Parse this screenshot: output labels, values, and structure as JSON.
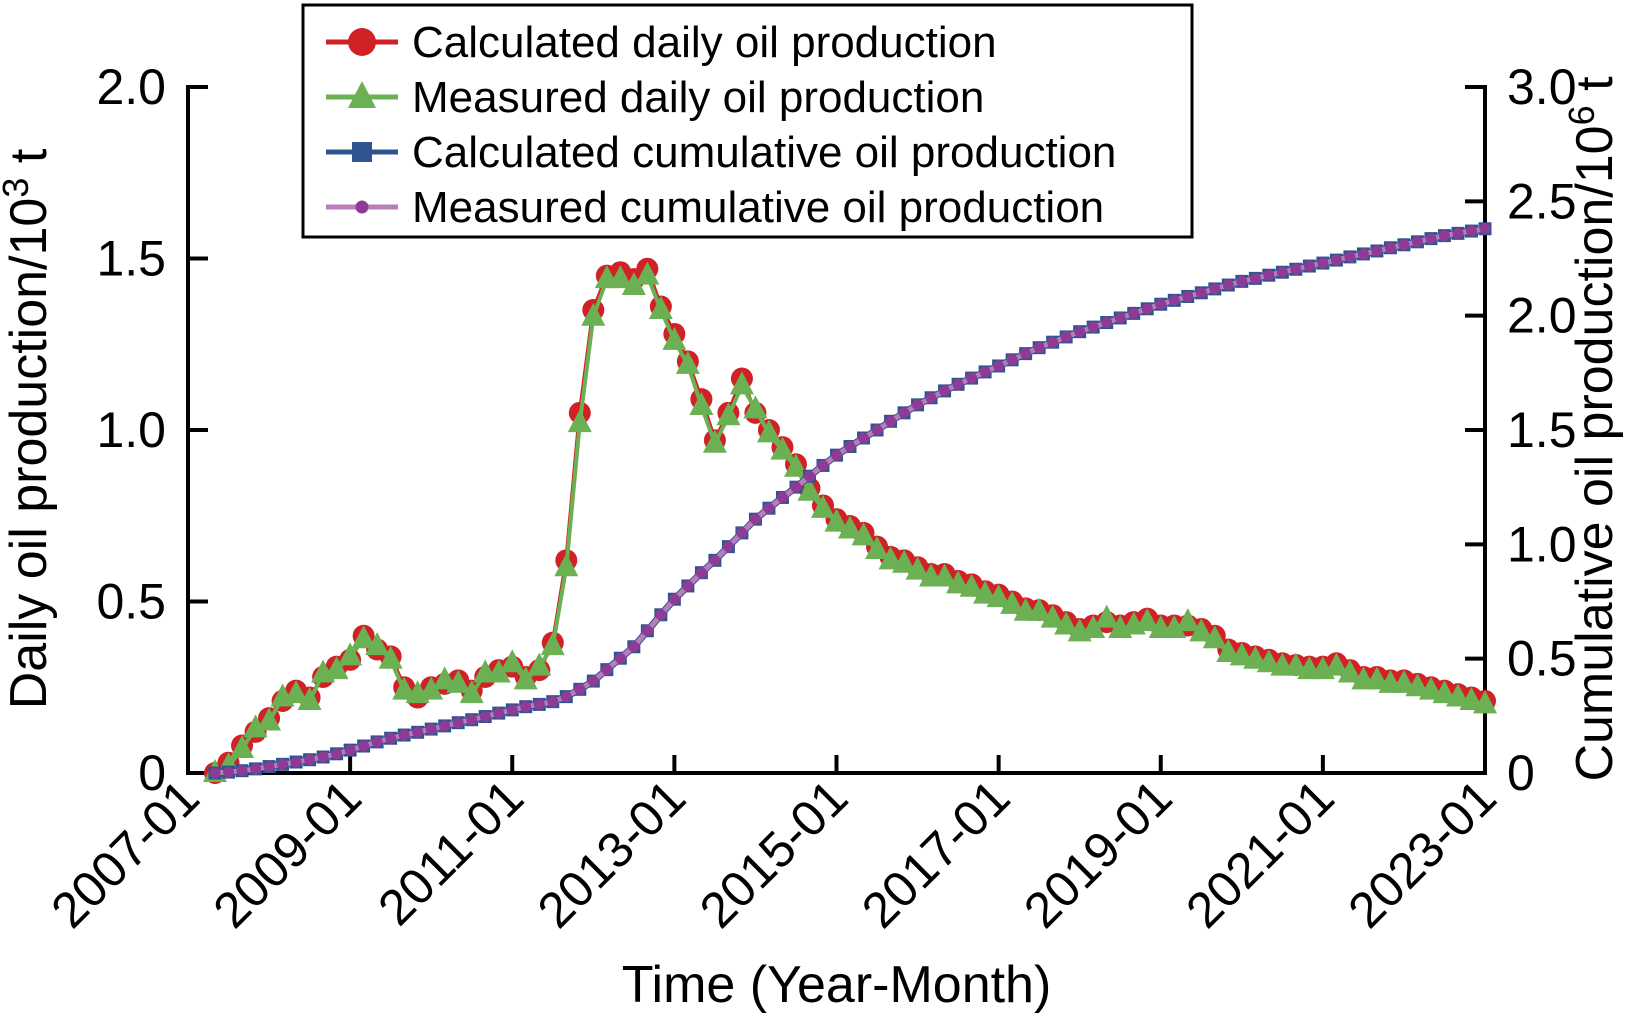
{
  "figure": {
    "background": "#ffffff",
    "axis_color": "#000000",
    "text_color": "#000000"
  },
  "chart_data": {
    "type": "line",
    "title": "",
    "xlabel": "Time (Year-Month)",
    "x_tick_labels": [
      "2007-01",
      "2009-01",
      "2011-01",
      "2013-01",
      "2015-01",
      "2017-01",
      "2019-01",
      "2021-01",
      "2023-01"
    ],
    "x_tick_years": [
      2007,
      2009,
      2011,
      2013,
      2015,
      2017,
      2019,
      2021,
      2023
    ],
    "x_range_years": [
      2007.0,
      2023.0
    ],
    "left_axis": {
      "title_prefix": "Daily oil production/10",
      "title_sup": "3",
      "title_suffix": " t",
      "range": [
        0,
        2.0
      ],
      "tick_values": [
        0,
        0.5,
        1.0,
        1.5,
        2.0
      ],
      "tick_labels": [
        "0",
        "0.5",
        "1.0",
        "1.5",
        "2.0"
      ]
    },
    "right_axis": {
      "title_prefix": "Cumulative oil production/10",
      "title_sup": "6",
      "title_suffix": " t",
      "range": [
        0,
        3.0
      ],
      "tick_values": [
        0,
        0.5,
        1.0,
        1.5,
        2.0,
        2.5,
        3.0
      ],
      "tick_labels": [
        "0",
        "0.5",
        "1.0",
        "1.5",
        "2.0",
        "2.5",
        "3.0"
      ]
    },
    "sampling": {
      "start_month": "2007-05",
      "end_month": "2023-01",
      "interval_months": 2,
      "start_year_decimal": 2007.3333,
      "step_years": 0.1666667
    },
    "legend": {
      "position": "top-left",
      "border_color": "#000000",
      "background": "#ffffff"
    },
    "series": [
      {
        "name": "Calculated daily oil production",
        "axis": "left",
        "marker": "circle",
        "color": "#d22027",
        "line_color": "#d22027",
        "line_width": 4,
        "marker_half_size": 11,
        "legend_marker_half_size": 14,
        "values": [
          0.0,
          0.03,
          0.08,
          0.12,
          0.16,
          0.21,
          0.24,
          0.22,
          0.28,
          0.31,
          0.33,
          0.4,
          0.36,
          0.34,
          0.25,
          0.22,
          0.25,
          0.26,
          0.27,
          0.24,
          0.28,
          0.3,
          0.31,
          0.28,
          0.3,
          0.38,
          0.62,
          1.05,
          1.35,
          1.45,
          1.46,
          1.44,
          1.47,
          1.36,
          1.28,
          1.2,
          1.09,
          0.97,
          1.05,
          1.15,
          1.05,
          1.0,
          0.95,
          0.9,
          0.83,
          0.78,
          0.74,
          0.72,
          0.7,
          0.66,
          0.63,
          0.62,
          0.6,
          0.58,
          0.58,
          0.56,
          0.55,
          0.53,
          0.52,
          0.5,
          0.48,
          0.475,
          0.46,
          0.44,
          0.42,
          0.43,
          0.44,
          0.43,
          0.44,
          0.45,
          0.43,
          0.43,
          0.43,
          0.42,
          0.4,
          0.36,
          0.35,
          0.34,
          0.33,
          0.32,
          0.315,
          0.31,
          0.31,
          0.32,
          0.3,
          0.28,
          0.28,
          0.27,
          0.27,
          0.26,
          0.25,
          0.24,
          0.23,
          0.22,
          0.21
        ]
      },
      {
        "name": "Measured daily oil production",
        "axis": "left",
        "marker": "triangle",
        "color": "#6bb052",
        "line_color": "#6bb052",
        "line_width": 4,
        "marker_half_size": 12,
        "legend_marker_half_size": 14,
        "values": [
          0.0,
          0.02,
          0.07,
          0.13,
          0.15,
          0.22,
          0.23,
          0.21,
          0.29,
          0.3,
          0.34,
          0.39,
          0.37,
          0.33,
          0.24,
          0.23,
          0.24,
          0.27,
          0.26,
          0.23,
          0.29,
          0.29,
          0.32,
          0.27,
          0.31,
          0.37,
          0.6,
          1.02,
          1.33,
          1.44,
          1.44,
          1.42,
          1.45,
          1.35,
          1.26,
          1.19,
          1.07,
          0.96,
          1.04,
          1.13,
          1.06,
          0.99,
          0.94,
          0.89,
          0.82,
          0.77,
          0.73,
          0.71,
          0.69,
          0.65,
          0.62,
          0.61,
          0.59,
          0.57,
          0.57,
          0.55,
          0.54,
          0.52,
          0.51,
          0.49,
          0.47,
          0.47,
          0.45,
          0.43,
          0.41,
          0.42,
          0.45,
          0.42,
          0.43,
          0.44,
          0.42,
          0.42,
          0.44,
          0.41,
          0.39,
          0.35,
          0.34,
          0.33,
          0.32,
          0.31,
          0.31,
          0.3,
          0.3,
          0.31,
          0.29,
          0.27,
          0.27,
          0.26,
          0.26,
          0.25,
          0.24,
          0.23,
          0.22,
          0.21,
          0.2
        ]
      },
      {
        "name": "Calculated cumulative oil production",
        "axis": "right",
        "marker": "square",
        "color": "#2e5590",
        "line_color": "#2e5590",
        "line_width": 7,
        "marker_half_size": 6.5,
        "legend_marker_half_size": 10,
        "values": [
          0.0,
          0.004,
          0.01,
          0.018,
          0.028,
          0.038,
          0.048,
          0.058,
          0.07,
          0.084,
          0.1,
          0.118,
          0.136,
          0.152,
          0.166,
          0.178,
          0.192,
          0.206,
          0.22,
          0.233,
          0.247,
          0.262,
          0.276,
          0.29,
          0.3,
          0.312,
          0.334,
          0.366,
          0.402,
          0.452,
          0.502,
          0.552,
          0.622,
          0.692,
          0.76,
          0.818,
          0.876,
          0.93,
          0.99,
          1.05,
          1.11,
          1.158,
          1.205,
          1.25,
          1.298,
          1.345,
          1.39,
          1.428,
          1.465,
          1.5,
          1.538,
          1.575,
          1.61,
          1.641,
          1.671,
          1.7,
          1.727,
          1.754,
          1.78,
          1.807,
          1.834,
          1.86,
          1.884,
          1.907,
          1.93,
          1.95,
          1.97,
          1.99,
          2.01,
          2.03,
          2.05,
          2.067,
          2.084,
          2.1,
          2.117,
          2.134,
          2.15,
          2.163,
          2.177,
          2.19,
          2.203,
          2.217,
          2.23,
          2.243,
          2.257,
          2.27,
          2.283,
          2.297,
          2.31,
          2.323,
          2.337,
          2.35,
          2.36,
          2.37,
          2.38
        ]
      },
      {
        "name": "Measured cumulative oil production",
        "axis": "right",
        "marker": "dot",
        "color": "#8e3b96",
        "line_color": "#b97cbd",
        "line_width": 5,
        "marker_half_size": 5.5,
        "legend_marker_half_size": 6.5,
        "values": [
          0.0,
          0.004,
          0.01,
          0.018,
          0.028,
          0.038,
          0.048,
          0.058,
          0.07,
          0.084,
          0.1,
          0.118,
          0.136,
          0.152,
          0.166,
          0.178,
          0.192,
          0.206,
          0.22,
          0.233,
          0.247,
          0.262,
          0.276,
          0.29,
          0.3,
          0.312,
          0.334,
          0.366,
          0.402,
          0.452,
          0.502,
          0.552,
          0.622,
          0.692,
          0.76,
          0.818,
          0.876,
          0.93,
          0.99,
          1.05,
          1.11,
          1.158,
          1.205,
          1.25,
          1.298,
          1.345,
          1.39,
          1.428,
          1.465,
          1.5,
          1.538,
          1.575,
          1.61,
          1.641,
          1.671,
          1.7,
          1.727,
          1.754,
          1.78,
          1.807,
          1.834,
          1.86,
          1.884,
          1.907,
          1.93,
          1.95,
          1.97,
          1.99,
          2.01,
          2.03,
          2.05,
          2.067,
          2.084,
          2.1,
          2.117,
          2.134,
          2.15,
          2.163,
          2.177,
          2.19,
          2.203,
          2.217,
          2.23,
          2.243,
          2.257,
          2.27,
          2.283,
          2.297,
          2.31,
          2.323,
          2.337,
          2.35,
          2.36,
          2.37,
          2.38
        ]
      }
    ]
  }
}
